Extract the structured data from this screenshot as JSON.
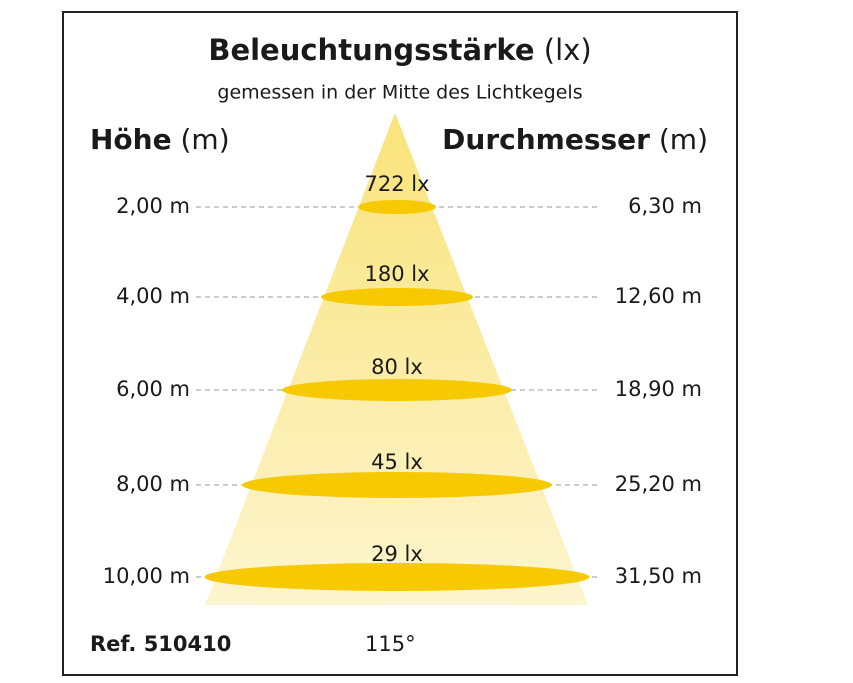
{
  "header": {
    "title": "Beleuchtungsstärke",
    "title_unit": "(lx)",
    "subtitle": "gemessen in der Mitte des Lichtkegels"
  },
  "columns": {
    "left": "Höhe",
    "left_unit": "(m)",
    "right": "Durchmesser",
    "right_unit": "(m)"
  },
  "rows": [
    {
      "height": "2,00 m",
      "lux": "722 lx",
      "diameter": "6,30 m"
    },
    {
      "height": "4,00 m",
      "lux": "180 lx",
      "diameter": "12,60 m"
    },
    {
      "height": "6,00 m",
      "lux": "80 lx",
      "diameter": "18,90 m"
    },
    {
      "height": "8,00 m",
      "lux": "45 lx",
      "diameter": "25,20 m"
    },
    {
      "height": "10,00 m",
      "lux": "29 lx",
      "diameter": "31,50 m"
    }
  ],
  "footer": {
    "reference": "Ref. 510410",
    "angle": "115°"
  }
}
